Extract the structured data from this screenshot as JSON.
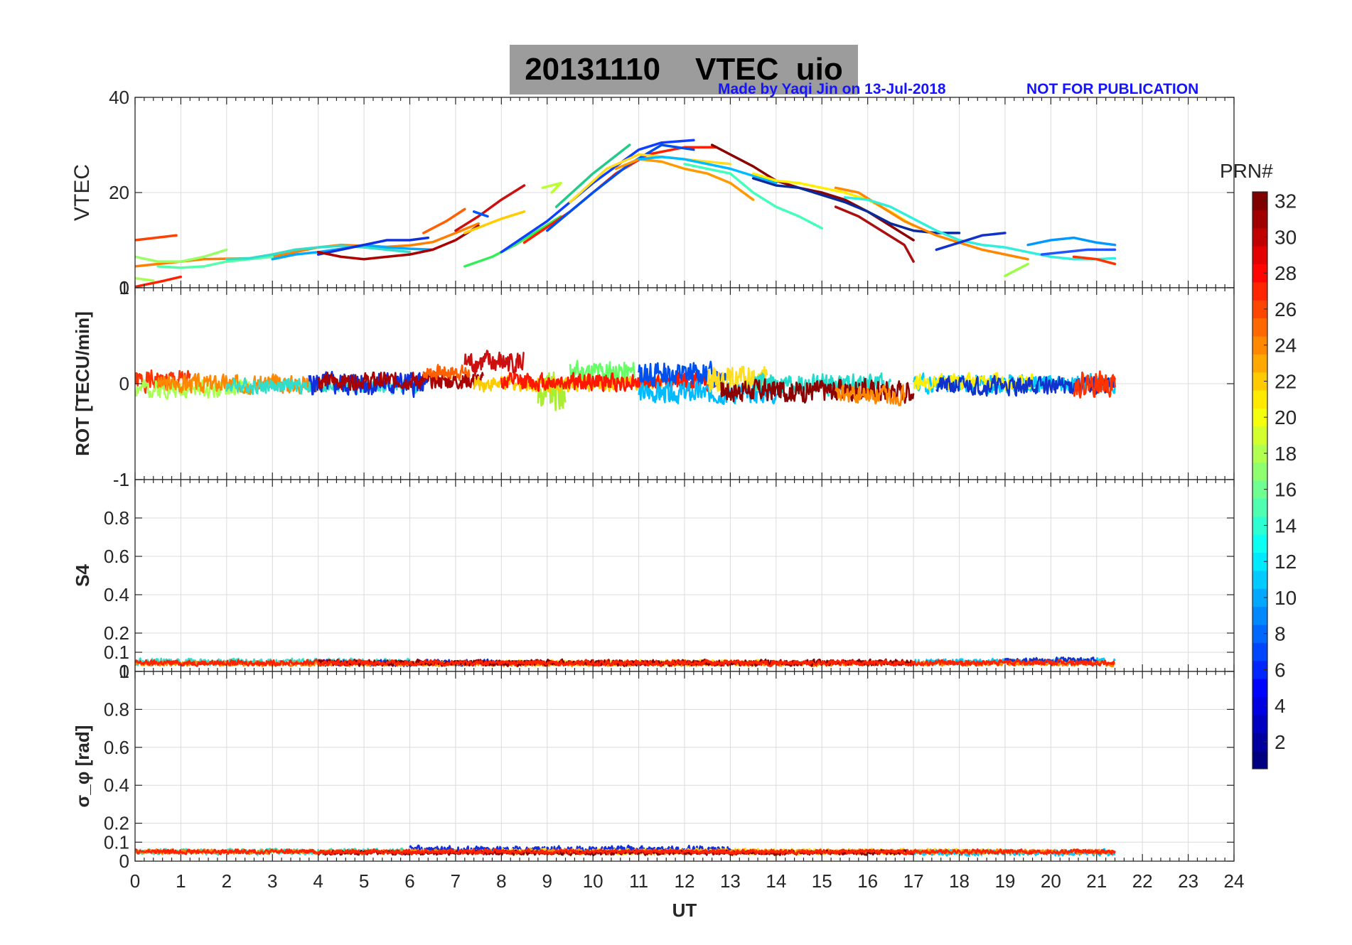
{
  "figure": {
    "title": "20131110    VTEC  uio",
    "credit": "Made by Yaqi Jin on 13-Jul-2018",
    "notice": "NOT FOR PUBLICATION"
  },
  "chart_data": [
    {
      "type": "line",
      "panel": "vtec",
      "ylabel": "VTEC",
      "xlim": [
        0,
        24
      ],
      "ylim": [
        0,
        40
      ],
      "yticks": [
        0,
        20,
        40
      ],
      "grid": true,
      "series": [
        {
          "color": "#ff4000",
          "x": [
            0,
            0.9
          ],
          "y": [
            10,
            11
          ]
        },
        {
          "color": "#ff2000",
          "x": [
            0,
            0.3,
            0.6,
            1.0
          ],
          "y": [
            0.2,
            0.8,
            1.4,
            2.3
          ]
        },
        {
          "color": "#aaff55",
          "x": [
            0,
            0.4
          ],
          "y": [
            2.0,
            1.5
          ]
        },
        {
          "color": "#ff8000",
          "x": [
            0,
            0.5,
            1,
            1.5,
            2,
            2.5,
            3,
            3.5,
            4,
            4.5,
            5,
            5.5,
            6,
            6.5,
            7,
            7.5
          ],
          "y": [
            4.5,
            5.0,
            5.5,
            6.0,
            6.1,
            6.2,
            6.5,
            7.5,
            8.5,
            9.0,
            8.8,
            8.6,
            8.9,
            9.6,
            11.5,
            13.5
          ]
        },
        {
          "color": "#9aff66",
          "x": [
            0,
            0.5,
            1,
            1.5,
            2
          ],
          "y": [
            6.5,
            5.5,
            5.5,
            6.5,
            8.0
          ]
        },
        {
          "color": "#55ffaa",
          "x": [
            0.5,
            1,
            1.5,
            2,
            2.5,
            3
          ],
          "y": [
            4.5,
            4.2,
            4.5,
            5.5,
            6.0,
            6.5
          ]
        },
        {
          "color": "#33ddcc",
          "x": [
            2,
            2.5,
            3,
            3.5,
            4,
            4.5,
            5,
            5.5,
            6
          ],
          "y": [
            6.0,
            6.2,
            7.0,
            8.0,
            8.5,
            8.8,
            8.5,
            8.0,
            7.5
          ]
        },
        {
          "color": "#00aaff",
          "x": [
            3,
            3.5,
            4,
            4.5,
            5,
            5.5,
            6,
            6.5
          ],
          "y": [
            6.0,
            7.0,
            7.5,
            8.2,
            9.0,
            8.5,
            8.2,
            8.0
          ]
        },
        {
          "color": "#1030dd",
          "x": [
            4,
            4.5,
            5,
            5.5,
            6,
            6.4
          ],
          "y": [
            7.0,
            8.0,
            9.0,
            10.0,
            10.0,
            10.5
          ]
        },
        {
          "color": "#aa0000",
          "x": [
            4,
            4.5,
            5,
            5.5,
            6,
            6.5,
            7,
            7.5
          ],
          "y": [
            7.5,
            6.5,
            6.0,
            6.5,
            7.0,
            8.0,
            10.0,
            13.0
          ]
        },
        {
          "color": "#ff6000",
          "x": [
            6.3,
            6.8,
            7.2
          ],
          "y": [
            11.5,
            14.0,
            16.5
          ]
        },
        {
          "color": "#cc1010",
          "x": [
            7.0,
            7.5,
            8.0,
            8.5
          ],
          "y": [
            12.0,
            15.0,
            18.5,
            21.5
          ]
        },
        {
          "color": "#ffcc00",
          "x": [
            7.2,
            7.6,
            8.0,
            8.5
          ],
          "y": [
            11.5,
            13.0,
            14.5,
            16.0
          ]
        },
        {
          "color": "#33ee55",
          "x": [
            7.2,
            7.8,
            8.3,
            8.8,
            9.3
          ],
          "y": [
            4.5,
            6.5,
            9.0,
            12.0,
            15.0
          ]
        },
        {
          "color": "#0055ff",
          "x": [
            7.4,
            7.7
          ],
          "y": [
            16.0,
            15.0
          ]
        },
        {
          "color": "#bbff33",
          "x": [
            8.9,
            9.3,
            9.1
          ],
          "y": [
            21.0,
            22.0,
            20.0
          ]
        },
        {
          "color": "#0f40ff",
          "x": [
            8.0,
            9.0,
            10.0,
            11.0,
            11.5,
            12.2
          ],
          "y": [
            7.5,
            14.0,
            22.0,
            29.0,
            30.5,
            31.0
          ]
        },
        {
          "color": "#ff2000",
          "x": [
            8.5,
            9.5,
            10.5,
            11.2,
            12.0,
            12.7
          ],
          "y": [
            9.5,
            16.0,
            24.0,
            28.0,
            29.5,
            29.5
          ]
        },
        {
          "color": "#0050ee",
          "x": [
            9.0,
            10.0,
            10.8,
            11.5,
            12.2
          ],
          "y": [
            12.0,
            20.0,
            26.0,
            30.0,
            29.0
          ]
        },
        {
          "color": "#22cc88",
          "x": [
            9.2,
            10.0,
            10.8
          ],
          "y": [
            17.0,
            24.0,
            30.0
          ]
        },
        {
          "color": "#ffdd22",
          "x": [
            9.5,
            10.3,
            11.0,
            11.5,
            12.0,
            12.5,
            13.0
          ],
          "y": [
            18.0,
            25.0,
            28.0,
            27.5,
            27.0,
            26.5,
            26.0
          ]
        },
        {
          "color": "#ff9900",
          "x": [
            10.5,
            11.0,
            11.5,
            12.0,
            12.5,
            13.0,
            13.5
          ],
          "y": [
            25.0,
            27.0,
            26.5,
            25.0,
            24.0,
            22.0,
            18.5
          ]
        },
        {
          "color": "#00bbff",
          "x": [
            11.0,
            11.5,
            12.0,
            12.5,
            13.0,
            13.5,
            14.0
          ],
          "y": [
            27.0,
            27.5,
            27.0,
            26.0,
            25.0,
            23.5,
            22.0
          ]
        },
        {
          "color": "#44ffbb",
          "x": [
            12.0,
            12.5,
            13.0,
            13.5,
            14.0,
            14.5,
            15.0
          ],
          "y": [
            26.0,
            25.0,
            24.0,
            20.0,
            17.0,
            15.0,
            12.5
          ]
        },
        {
          "color": "#8b0000",
          "x": [
            12.6,
            13.0,
            13.5,
            14.0,
            14.5,
            15.0,
            15.5,
            16.0,
            16.5,
            17.0
          ],
          "y": [
            30.0,
            28.0,
            25.5,
            22.5,
            21.0,
            20.0,
            18.5,
            16.0,
            13.0,
            10.0
          ]
        },
        {
          "color": "#ffee00",
          "x": [
            13.5,
            14.0,
            14.5,
            15.0,
            15.5,
            16.0,
            16.5,
            17.0
          ],
          "y": [
            24.0,
            22.5,
            22.0,
            21.0,
            20.0,
            18.5,
            16.0,
            13.0
          ]
        },
        {
          "color": "#0a2a99",
          "x": [
            13.5,
            14.0,
            14.5,
            15.0,
            15.5,
            16.0,
            16.5,
            17.0,
            17.5,
            18.0
          ],
          "y": [
            23.0,
            21.5,
            21.0,
            19.5,
            18.0,
            16.0,
            13.5,
            12.0,
            11.5,
            11.5
          ]
        },
        {
          "color": "#aa1010",
          "x": [
            15.3,
            15.8,
            16.3,
            16.8,
            17.0
          ],
          "y": [
            17.0,
            15.0,
            12.0,
            9.0,
            5.5
          ]
        },
        {
          "color": "#ff8800",
          "x": [
            15.3,
            15.8,
            16.3,
            16.8,
            17.5,
            18.0,
            18.5,
            19.0,
            19.5
          ],
          "y": [
            21.0,
            20.0,
            17.0,
            14.0,
            11.0,
            9.5,
            8.0,
            7.0,
            6.0
          ]
        },
        {
          "color": "#33eedd",
          "x": [
            15.5,
            16.0,
            16.5,
            17.0,
            17.5,
            18.0,
            18.5,
            19.0,
            19.5,
            20.0,
            20.5,
            21.0,
            21.4
          ],
          "y": [
            19.0,
            18.5,
            17.0,
            14.5,
            12.0,
            10.0,
            9.0,
            8.5,
            7.5,
            6.5,
            6.0,
            6.0,
            6.2
          ]
        },
        {
          "color": "#1133cc",
          "x": [
            17.5,
            18.0,
            18.5,
            19.0
          ],
          "y": [
            8.0,
            9.5,
            11.0,
            11.5
          ]
        },
        {
          "color": "#99ff44",
          "x": [
            19.0,
            19.5
          ],
          "y": [
            2.5,
            5.0
          ]
        },
        {
          "color": "#0099ff",
          "x": [
            19.5,
            20.0,
            20.5,
            21.0,
            21.4
          ],
          "y": [
            9.0,
            10.0,
            10.5,
            9.5,
            9.0
          ]
        },
        {
          "color": "#ff3300",
          "x": [
            20.5,
            21.0,
            21.4
          ],
          "y": [
            6.5,
            6.0,
            5.0
          ]
        },
        {
          "color": "#2255ff",
          "x": [
            19.8,
            20.3,
            20.8,
            21.4
          ],
          "y": [
            7.0,
            7.5,
            8.0,
            8.0
          ]
        }
      ]
    },
    {
      "type": "line",
      "panel": "rot",
      "ylabel": "ROT [TECU/min]",
      "xlim": [
        0,
        24
      ],
      "ylim": [
        -1,
        1
      ],
      "yticks": [
        -1,
        0,
        1
      ],
      "grid": true,
      "note": "noisy rate-of-TEC traces for each PRN, approx within ±0.5 TECU/min",
      "series": [
        {
          "color": "#ff3300",
          "x0": 0.0,
          "x1": 1.2,
          "center": 0.03,
          "amp": 0.14,
          "seed": 1
        },
        {
          "color": "#aaff55",
          "x0": 0.0,
          "x1": 2.5,
          "center": -0.05,
          "amp": 0.12,
          "seed": 2
        },
        {
          "color": "#ff8800",
          "x0": 0.5,
          "x1": 4.2,
          "center": 0.0,
          "amp": 0.12,
          "seed": 3
        },
        {
          "color": "#33ddcc",
          "x0": 2.0,
          "x1": 6.2,
          "center": -0.02,
          "amp": 0.1,
          "seed": 4
        },
        {
          "color": "#1030dd",
          "x0": 3.8,
          "x1": 6.4,
          "center": 0.0,
          "amp": 0.16,
          "seed": 5
        },
        {
          "color": "#aa0000",
          "x0": 4.0,
          "x1": 7.6,
          "center": 0.03,
          "amp": 0.11,
          "seed": 6
        },
        {
          "color": "#ff6000",
          "x0": 6.3,
          "x1": 7.3,
          "center": 0.12,
          "amp": 0.1,
          "seed": 7
        },
        {
          "color": "#cc1010",
          "x0": 7.2,
          "x1": 8.5,
          "center": 0.22,
          "amp": 0.16,
          "seed": 8
        },
        {
          "color": "#aaee33",
          "x0": 8.8,
          "x1": 9.4,
          "center": -0.1,
          "amp": 0.28,
          "seed": 9
        },
        {
          "color": "#ffcc00",
          "x0": 7.4,
          "x1": 11.5,
          "center": 0.0,
          "amp": 0.1,
          "seed": 10
        },
        {
          "color": "#66ff66",
          "x0": 9.5,
          "x1": 10.9,
          "center": 0.12,
          "amp": 0.15,
          "seed": 11
        },
        {
          "color": "#ff1800",
          "x0": 8.0,
          "x1": 12.8,
          "center": 0.02,
          "amp": 0.12,
          "seed": 12
        },
        {
          "color": "#0050ee",
          "x0": 11.0,
          "x1": 12.9,
          "center": 0.1,
          "amp": 0.16,
          "seed": 13
        },
        {
          "color": "#00bbff",
          "x0": 11.0,
          "x1": 14.0,
          "center": -0.1,
          "amp": 0.14,
          "seed": 14
        },
        {
          "color": "#ffdd22",
          "x0": 12.5,
          "x1": 13.8,
          "center": 0.05,
          "amp": 0.16,
          "seed": 15
        },
        {
          "color": "#22ddcc",
          "x0": 13.5,
          "x1": 16.5,
          "center": 0.0,
          "amp": 0.14,
          "seed": 16
        },
        {
          "color": "#8b0000",
          "x0": 12.8,
          "x1": 17.0,
          "center": -0.07,
          "amp": 0.15,
          "seed": 17
        },
        {
          "color": "#ff8800",
          "x0": 15.3,
          "x1": 16.8,
          "center": -0.12,
          "amp": 0.12,
          "seed": 18
        },
        {
          "color": "#00ccff",
          "x0": 17.0,
          "x1": 21.4,
          "center": 0.0,
          "amp": 0.12,
          "seed": 19
        },
        {
          "color": "#ffee00",
          "x0": 17.0,
          "x1": 19.6,
          "center": 0.02,
          "amp": 0.1,
          "seed": 20
        },
        {
          "color": "#1133cc",
          "x0": 17.5,
          "x1": 21.4,
          "center": -0.02,
          "amp": 0.12,
          "seed": 21
        },
        {
          "color": "#ff3300",
          "x0": 20.5,
          "x1": 21.4,
          "center": 0.0,
          "amp": 0.16,
          "seed": 22
        }
      ]
    },
    {
      "type": "line",
      "panel": "s4",
      "ylabel": "S4",
      "xlim": [
        0,
        24
      ],
      "ylim": [
        0,
        1
      ],
      "yticks": [
        0,
        0.1,
        0.2,
        0.4,
        0.6,
        0.8,
        1
      ],
      "grid": true,
      "note": "scintillation index traces, values approx 0.02–0.1",
      "series": [
        {
          "color": "#33ddcc",
          "x0": 0.0,
          "x1": 6.0,
          "center": 0.05,
          "amp": 0.022,
          "seed": 31
        },
        {
          "color": "#1030dd",
          "x0": 4.0,
          "x1": 9.0,
          "center": 0.045,
          "amp": 0.02,
          "seed": 32
        },
        {
          "color": "#ffdd22",
          "x0": 8.0,
          "x1": 14.0,
          "center": 0.045,
          "amp": 0.02,
          "seed": 33
        },
        {
          "color": "#00ccff",
          "x0": 17.0,
          "x1": 21.4,
          "center": 0.05,
          "amp": 0.022,
          "seed": 34
        },
        {
          "color": "#1133cc",
          "x0": 19.0,
          "x1": 21.0,
          "center": 0.055,
          "amp": 0.022,
          "seed": 35
        },
        {
          "color": "#ff8800",
          "x0": 0.0,
          "x1": 21.4,
          "center": 0.04,
          "amp": 0.015,
          "seed": 36
        },
        {
          "color": "#8b0000",
          "x0": 4.0,
          "x1": 17.0,
          "center": 0.045,
          "amp": 0.02,
          "seed": 37
        },
        {
          "color": "#ff2200",
          "x0": 0.0,
          "x1": 21.4,
          "center": 0.045,
          "amp": 0.018,
          "seed": 38
        }
      ]
    },
    {
      "type": "line",
      "panel": "sigma_phi",
      "ylabel": "σ_φ [rad]",
      "xlabel": "UT",
      "xlim": [
        0,
        24
      ],
      "ylim": [
        0,
        1
      ],
      "yticks": [
        0,
        0.1,
        0.2,
        0.4,
        0.6,
        0.8,
        1
      ],
      "xticks": [
        0,
        1,
        2,
        3,
        4,
        5,
        6,
        7,
        8,
        9,
        10,
        11,
        12,
        13,
        14,
        15,
        16,
        17,
        18,
        19,
        20,
        21,
        22,
        23,
        24
      ],
      "grid": true,
      "note": "phase scintillation traces, values approx 0.02–0.12",
      "series": [
        {
          "color": "#33ddcc",
          "x0": 0.0,
          "x1": 6.0,
          "center": 0.05,
          "amp": 0.02,
          "seed": 41
        },
        {
          "color": "#1030dd",
          "x0": 6.0,
          "x1": 13.0,
          "center": 0.06,
          "amp": 0.025,
          "seed": 42
        },
        {
          "color": "#ffdd22",
          "x0": 8.0,
          "x1": 19.0,
          "center": 0.05,
          "amp": 0.02,
          "seed": 43
        },
        {
          "color": "#00ccff",
          "x0": 17.0,
          "x1": 21.4,
          "center": 0.045,
          "amp": 0.02,
          "seed": 44
        },
        {
          "color": "#ff8800",
          "x0": 0.0,
          "x1": 21.4,
          "center": 0.05,
          "amp": 0.015,
          "seed": 45
        },
        {
          "color": "#8b0000",
          "x0": 4.0,
          "x1": 17.0,
          "center": 0.045,
          "amp": 0.015,
          "seed": 46
        },
        {
          "color": "#ff2200",
          "x0": 0.0,
          "x1": 21.4,
          "center": 0.05,
          "amp": 0.015,
          "seed": 47
        }
      ]
    },
    {
      "type": "heatmap",
      "panel": "colorbar",
      "label": "PRN#",
      "range": [
        1,
        32
      ],
      "ticks": [
        2,
        4,
        6,
        8,
        10,
        12,
        14,
        16,
        18,
        20,
        22,
        24,
        26,
        28,
        30,
        32
      ],
      "colormap": "jet"
    }
  ]
}
